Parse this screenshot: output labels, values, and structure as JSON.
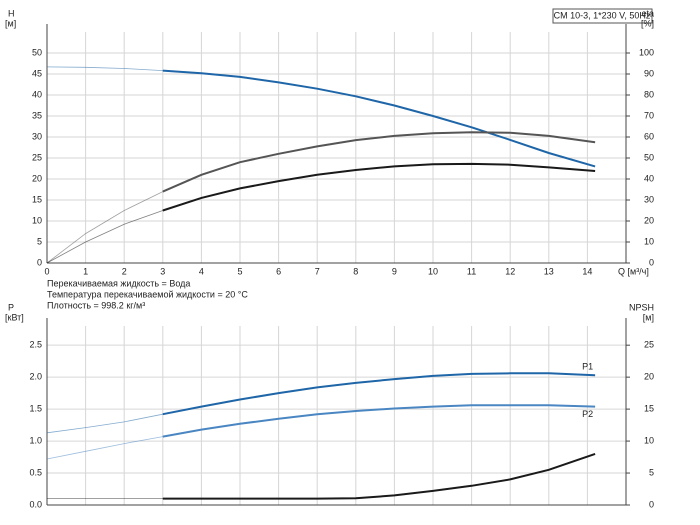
{
  "chart_data": [
    {
      "type": "line",
      "box_label": "CM 10-3, 1*230 V, 50Hz",
      "ylabel": "H",
      "yunit": "[м]",
      "y2label": "eta",
      "y2unit": "[%]",
      "xlabel": "Q [м³/ч]",
      "annotations": [
        "Перекачиваемая жидкость = Вода",
        "Температура перекачиваемой жидкости = 20 °C",
        "Плотность = 998.2 кг/м³"
      ],
      "x": [
        0,
        1,
        2,
        3,
        4,
        5,
        6,
        7,
        8,
        9,
        10,
        11,
        12,
        13,
        14.2
      ],
      "xlim": [
        0,
        15
      ],
      "xticks": [
        0,
        1,
        2,
        3,
        4,
        5,
        6,
        7,
        8,
        9,
        10,
        11,
        12,
        13,
        14
      ],
      "ylim": [
        0,
        55
      ],
      "yticks": [
        0,
        5,
        10,
        15,
        20,
        25,
        30,
        35,
        40,
        45,
        50
      ],
      "y2lim": [
        0,
        110
      ],
      "y2ticks": [
        0,
        10,
        20,
        30,
        40,
        50,
        60,
        70,
        80,
        90,
        100
      ],
      "grid": true,
      "show_xtick_labels": true,
      "duty_range": [
        3,
        14.2
      ],
      "series": [
        {
          "color": "#1f66a8",
          "values": [
            46.7,
            46.6,
            46.3,
            45.8,
            45.2,
            44.3,
            43,
            41.5,
            39.7,
            37.5,
            35,
            32.3,
            29.3,
            26.2,
            23
          ]
        },
        {
          "color": "#555555",
          "axis": "y2",
          "values": [
            0,
            14,
            25,
            34,
            42,
            48,
            52,
            55.5,
            58.5,
            60.5,
            61.8,
            62.3,
            62,
            60.5,
            57.5
          ]
        },
        {
          "color": "#1a1a1a",
          "axis": "y2",
          "values": [
            0,
            10,
            18.5,
            25,
            31,
            35.5,
            39,
            42,
            44.3,
            46,
            47,
            47.2,
            46.8,
            45.5,
            43.8
          ]
        }
      ]
    },
    {
      "type": "line",
      "ylabel": "P",
      "yunit": "[кВт]",
      "y2label": "NPSH",
      "y2unit": "[м]",
      "x": [
        0,
        1,
        2,
        3,
        4,
        5,
        6,
        7,
        8,
        9,
        10,
        11,
        12,
        13,
        14.2
      ],
      "xlim": [
        0,
        15
      ],
      "xticks": [
        0,
        1,
        2,
        3,
        4,
        5,
        6,
        7,
        8,
        9,
        10,
        11,
        12,
        13,
        14
      ],
      "ylim": [
        0,
        2.8
      ],
      "yticks": [
        {
          "value": 0,
          "label": "0.0"
        },
        0.5,
        {
          "value": 1,
          "label": "1.0"
        },
        1.5,
        {
          "value": 2,
          "label": "2.0"
        },
        2.5
      ],
      "y2lim": [
        0,
        28
      ],
      "y2ticks": [
        0,
        5,
        10,
        15,
        20,
        25
      ],
      "grid": true,
      "show_xtick_labels": false,
      "duty_range": [
        3,
        14.2
      ],
      "series": [
        {
          "name": "P1",
          "color": "#1f66a8",
          "values": [
            1.13,
            1.21,
            1.3,
            1.42,
            1.54,
            1.65,
            1.75,
            1.84,
            1.91,
            1.97,
            2.02,
            2.05,
            2.06,
            2.06,
            2.03
          ]
        },
        {
          "name": "P2",
          "color": "#4a86c2",
          "values": [
            0.72,
            0.84,
            0.96,
            1.07,
            1.18,
            1.27,
            1.35,
            1.42,
            1.47,
            1.51,
            1.54,
            1.56,
            1.56,
            1.56,
            1.54
          ]
        },
        {
          "color": "#1a1a1a",
          "axis": "y2",
          "values": [
            1,
            1,
            1,
            1,
            1,
            1,
            1,
            1,
            1.05,
            1.5,
            2.2,
            3,
            4,
            5.5,
            8
          ]
        }
      ]
    }
  ]
}
